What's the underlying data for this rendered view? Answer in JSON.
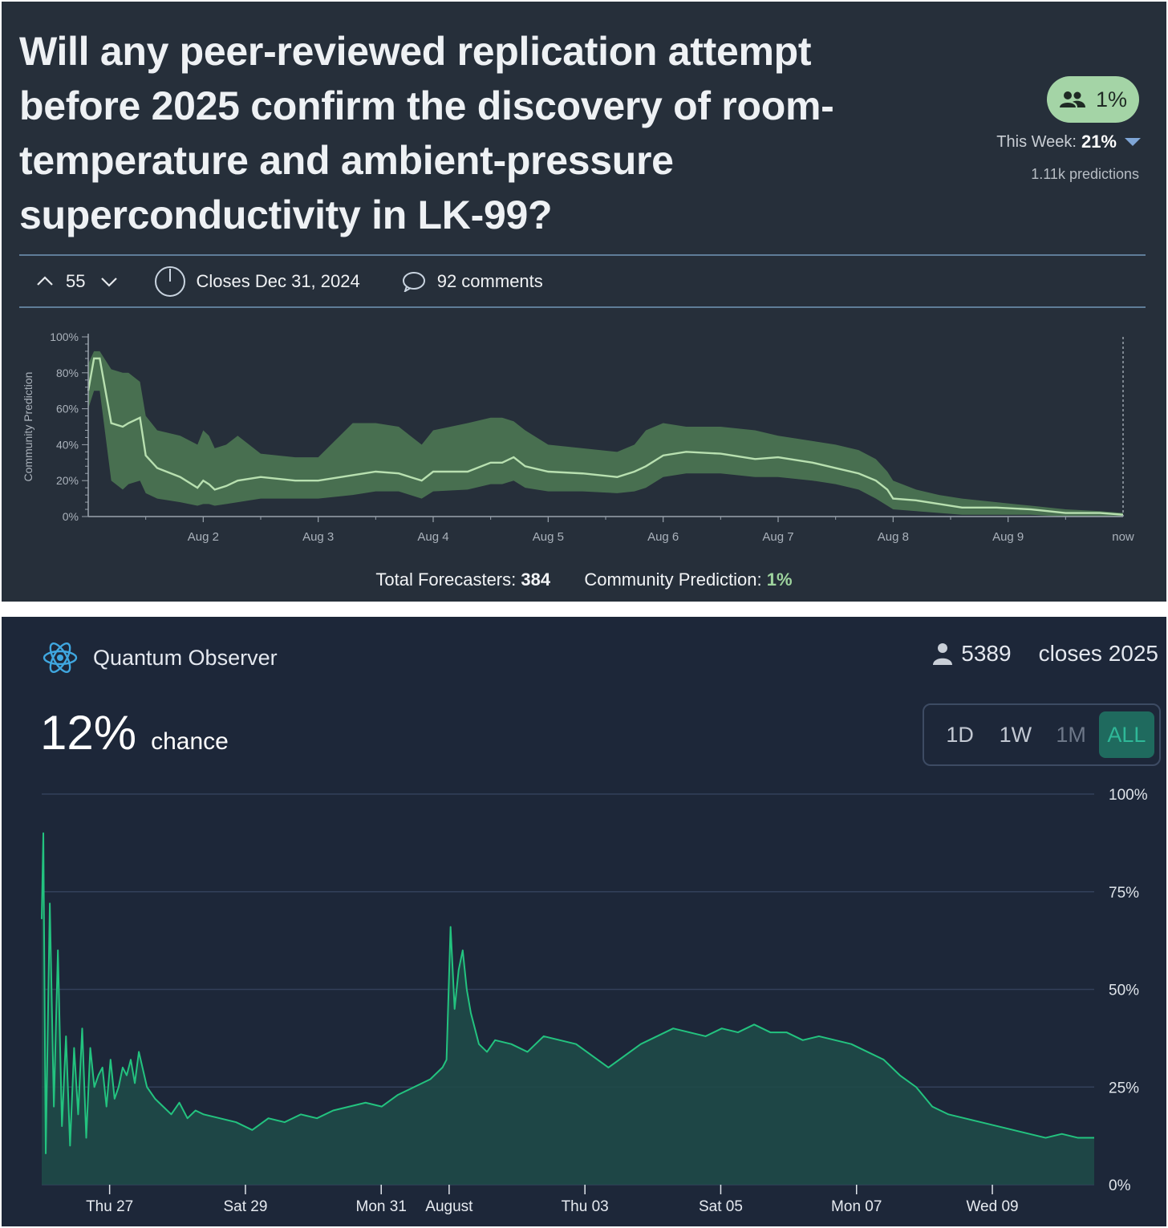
{
  "panel_a": {
    "question_title": "Will any peer-reviewed replication attempt before 2025 confirm the discovery of room-temperature and ambient-pressure superconductivity in LK-99?",
    "community_pill": "1%",
    "this_week_label": "This Week:",
    "this_week_value": "21%",
    "predictions": "1.11k predictions",
    "votes": "55",
    "closes": "Closes Dec 31, 2024",
    "comments": "92 comments",
    "footer_forecasters_label": "Total Forecasters:",
    "footer_forecasters_value": "384",
    "footer_cp_label": "Community Prediction:",
    "footer_cp_value": "1%",
    "colors": {
      "background": "#262f3a",
      "pill": "#a4d4a6",
      "line": "#b8e0b0",
      "band": "#4f7a55"
    }
  },
  "panel_b": {
    "brand": "Quantum Observer",
    "traders": "5389",
    "closes": "closes 2025",
    "chance_value": "12%",
    "chance_label": "chance",
    "range_buttons": [
      {
        "label": "1D",
        "state": "normal"
      },
      {
        "label": "1W",
        "state": "normal"
      },
      {
        "label": "1M",
        "state": "disabled"
      },
      {
        "label": "ALL",
        "state": "active"
      }
    ],
    "colors": {
      "background": "#1d2739",
      "line": "#23c37f",
      "area": "#1f4a48",
      "accent": "#2fb898"
    }
  },
  "chart_data": [
    {
      "type": "line",
      "ylabel": "Community Prediction",
      "ylim": [
        0,
        100
      ],
      "y_ticks": [
        "0%",
        "20%",
        "40%",
        "60%",
        "80%",
        "100%"
      ],
      "x_ticks": [
        "Aug 2",
        "Aug 3",
        "Aug 4",
        "Aug 5",
        "Aug 6",
        "Aug 7",
        "Aug 8",
        "Aug 9",
        "now"
      ],
      "x_unit": "days (Aug 1 = 1.0, now = Aug 10)",
      "series": [
        {
          "x": [
            1.0,
            1.05,
            1.1,
            1.2,
            1.3,
            1.35,
            1.45,
            1.5,
            1.6,
            1.8,
            1.95,
            2.0,
            2.05,
            2.1,
            2.2,
            2.3,
            2.5,
            2.8,
            3.0,
            3.3,
            3.5,
            3.7,
            3.8,
            3.9,
            4.0,
            4.3,
            4.5,
            4.6,
            4.7,
            4.8,
            5.0,
            5.3,
            5.6,
            5.75,
            5.85,
            6.0,
            6.2,
            6.5,
            6.8,
            7.0,
            7.3,
            7.5,
            7.7,
            7.85,
            7.95,
            8.0,
            8.2,
            8.4,
            8.6,
            8.9,
            9.2,
            9.5,
            9.8,
            10.0
          ],
          "y": [
            70,
            88,
            88,
            52,
            50,
            52,
            55,
            34,
            27,
            22,
            16,
            20,
            18,
            15,
            17,
            20,
            22,
            20,
            20,
            23,
            25,
            24,
            22,
            20,
            25,
            25,
            30,
            30,
            33,
            28,
            25,
            24,
            22,
            25,
            28,
            34,
            36,
            35,
            32,
            33,
            30,
            27,
            24,
            20,
            15,
            10,
            9,
            7,
            5,
            5,
            4,
            2,
            2,
            1
          ],
          "lower": [
            60,
            70,
            70,
            20,
            15,
            18,
            20,
            13,
            10,
            8,
            6,
            7,
            7,
            6,
            7,
            8,
            10,
            10,
            10,
            12,
            14,
            14,
            12,
            10,
            14,
            15,
            18,
            18,
            20,
            16,
            14,
            14,
            13,
            14,
            16,
            22,
            24,
            24,
            22,
            22,
            20,
            18,
            15,
            10,
            6,
            4,
            3,
            2,
            1,
            1,
            1,
            0,
            0,
            0
          ],
          "upper": [
            85,
            92,
            92,
            82,
            80,
            80,
            75,
            56,
            48,
            45,
            40,
            48,
            45,
            38,
            40,
            45,
            35,
            33,
            33,
            52,
            52,
            50,
            45,
            40,
            48,
            52,
            55,
            55,
            53,
            48,
            40,
            38,
            36,
            40,
            48,
            52,
            50,
            50,
            48,
            45,
            42,
            40,
            37,
            32,
            25,
            20,
            15,
            12,
            10,
            8,
            6,
            4,
            3,
            2
          ]
        }
      ]
    },
    {
      "type": "area",
      "ylim": [
        0,
        100
      ],
      "y_ticks": [
        "0%",
        "25%",
        "50%",
        "75%",
        "100%"
      ],
      "x_ticks": [
        "Thu 27",
        "Sat 29",
        "Mon 31",
        "August",
        "Thu 03",
        "Sat 05",
        "Mon 07",
        "Wed 09"
      ],
      "x_unit": "days (Jul 26 00:00 = 0)",
      "series": [
        {
          "x": [
            0.0,
            0.02,
            0.05,
            0.1,
            0.15,
            0.2,
            0.25,
            0.3,
            0.35,
            0.4,
            0.45,
            0.5,
            0.55,
            0.6,
            0.65,
            0.7,
            0.75,
            0.8,
            0.85,
            0.9,
            0.95,
            1.0,
            1.05,
            1.1,
            1.15,
            1.2,
            1.3,
            1.4,
            1.5,
            1.6,
            1.7,
            1.8,
            1.9,
            2.0,
            2.2,
            2.4,
            2.6,
            2.8,
            3.0,
            3.2,
            3.4,
            3.6,
            3.8,
            4.0,
            4.2,
            4.4,
            4.6,
            4.8,
            4.95,
            5.0,
            5.05,
            5.1,
            5.15,
            5.2,
            5.25,
            5.3,
            5.4,
            5.5,
            5.6,
            5.8,
            6.0,
            6.2,
            6.4,
            6.6,
            6.8,
            7.0,
            7.2,
            7.4,
            7.6,
            7.8,
            8.0,
            8.2,
            8.4,
            8.6,
            8.8,
            9.0,
            9.2,
            9.4,
            9.6,
            9.8,
            10.0,
            10.2,
            10.4,
            10.6,
            10.8,
            11.0,
            11.2,
            11.4,
            11.6,
            11.8,
            12.0,
            12.2,
            12.4,
            12.6,
            12.8,
            13.0
          ],
          "y": [
            68,
            90,
            8,
            72,
            20,
            60,
            15,
            38,
            10,
            35,
            18,
            40,
            12,
            35,
            25,
            28,
            30,
            20,
            32,
            22,
            25,
            30,
            28,
            32,
            26,
            34,
            25,
            22,
            20,
            18,
            21,
            17,
            19,
            18,
            17,
            16,
            14,
            17,
            16,
            18,
            17,
            19,
            20,
            21,
            20,
            23,
            25,
            27,
            30,
            32,
            66,
            45,
            55,
            60,
            50,
            44,
            36,
            34,
            37,
            36,
            34,
            38,
            37,
            36,
            33,
            30,
            33,
            36,
            38,
            40,
            39,
            38,
            40,
            39,
            41,
            39,
            39,
            37,
            38,
            37,
            36,
            34,
            32,
            28,
            25,
            20,
            18,
            17,
            16,
            15,
            14,
            13,
            12,
            13,
            12,
            12
          ]
        }
      ]
    }
  ]
}
